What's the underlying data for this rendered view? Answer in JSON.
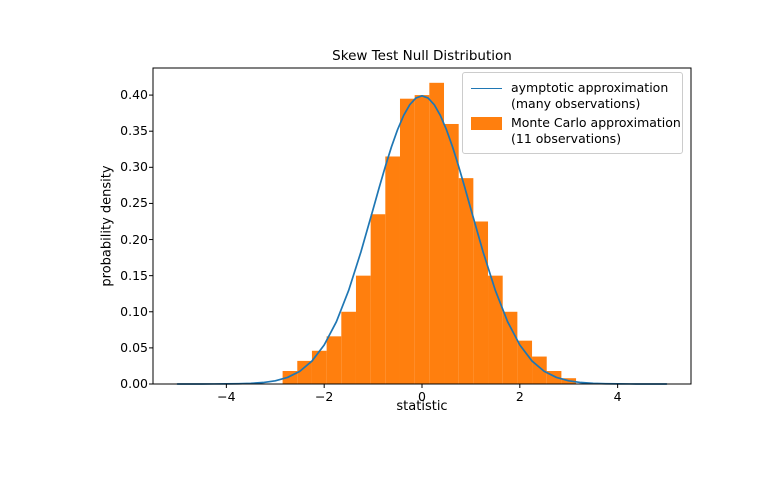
{
  "figure": {
    "background": "#ffffff",
    "title": "Skew Test Null Distribution",
    "xlabel": "statistic",
    "ylabel": "probability density"
  },
  "axes": {
    "xtick_labels": [
      "−4",
      "−2",
      "0",
      "2",
      "4"
    ],
    "ytick_labels": [
      "0.00",
      "0.05",
      "0.10",
      "0.15",
      "0.20",
      "0.25",
      "0.30",
      "0.35",
      "0.40"
    ],
    "spine_color": "#000000"
  },
  "chart_data": {
    "type": "histogram_with_line",
    "title": "Skew Test Null Distribution",
    "xlabel": "statistic",
    "ylabel": "probability density",
    "xlim": [
      -5.5,
      5.5
    ],
    "ylim": [
      0,
      0.4375
    ],
    "xticks": [
      -4,
      -2,
      0,
      2,
      4
    ],
    "yticks": [
      0,
      0.05,
      0.1,
      0.15,
      0.2,
      0.25,
      0.3,
      0.35,
      0.4
    ],
    "grid": false,
    "legend_position": "upper-right",
    "series": [
      {
        "name": "aymptotic approximation (many observations)",
        "type": "line",
        "color": "#1f77b4",
        "x": [
          -5,
          -4.75,
          -4.5,
          -4.25,
          -4,
          -3.75,
          -3.5,
          -3.25,
          -3,
          -2.75,
          -2.5,
          -2.25,
          -2,
          -1.75,
          -1.5,
          -1.25,
          -1,
          -0.875,
          -0.75,
          -0.625,
          -0.5,
          -0.375,
          -0.25,
          -0.125,
          0,
          0.125,
          0.25,
          0.375,
          0.5,
          0.625,
          0.75,
          0.875,
          1,
          1.25,
          1.5,
          1.75,
          2,
          2.25,
          2.5,
          2.75,
          3,
          3.25,
          3.5,
          3.75,
          4,
          4.25,
          4.5,
          4.75,
          5
        ],
        "y": [
          1e-06,
          5e-06,
          1.6e-05,
          5e-05,
          0.000134,
          0.000353,
          0.000873,
          0.002029,
          0.004432,
          0.009094,
          0.017528,
          0.03174,
          0.053991,
          0.086277,
          0.129518,
          0.182649,
          0.241971,
          0.272037,
          0.301137,
          0.328204,
          0.352065,
          0.371861,
          0.386668,
          0.395838,
          0.398942,
          0.395838,
          0.386668,
          0.371861,
          0.352065,
          0.328204,
          0.301137,
          0.272037,
          0.241971,
          0.182649,
          0.129518,
          0.086277,
          0.053991,
          0.03174,
          0.017528,
          0.009094,
          0.004432,
          0.002029,
          0.000873,
          0.000353,
          0.000134,
          5e-05,
          1.6e-05,
          5e-06,
          1e-06
        ]
      },
      {
        "name": "Monte Carlo approximation (11 observations)",
        "type": "histogram",
        "color": "#ff7f0e",
        "bin_edges": [
          -2.85,
          -2.55,
          -2.25,
          -1.95,
          -1.65,
          -1.35,
          -1.05,
          -0.75,
          -0.45,
          -0.15,
          0.15,
          0.45,
          0.75,
          1.05,
          1.35,
          1.65,
          1.95,
          2.25,
          2.55,
          2.85,
          3.15
        ],
        "densities": [
          0.018,
          0.032,
          0.046,
          0.066,
          0.1,
          0.15,
          0.235,
          0.315,
          0.395,
          0.4,
          0.417,
          0.36,
          0.285,
          0.225,
          0.15,
          0.1,
          0.06,
          0.038,
          0.018,
          0.008
        ]
      }
    ]
  },
  "legend": {
    "border_color": "#cccccc",
    "items": [
      {
        "swatch": "line",
        "color": "#1f77b4",
        "line1": "aymptotic approximation",
        "line2": "(many observations)"
      },
      {
        "swatch": "patch",
        "color": "#ff7f0e",
        "line1": "Monte Carlo approximation",
        "line2": "(11 observations)"
      }
    ]
  }
}
